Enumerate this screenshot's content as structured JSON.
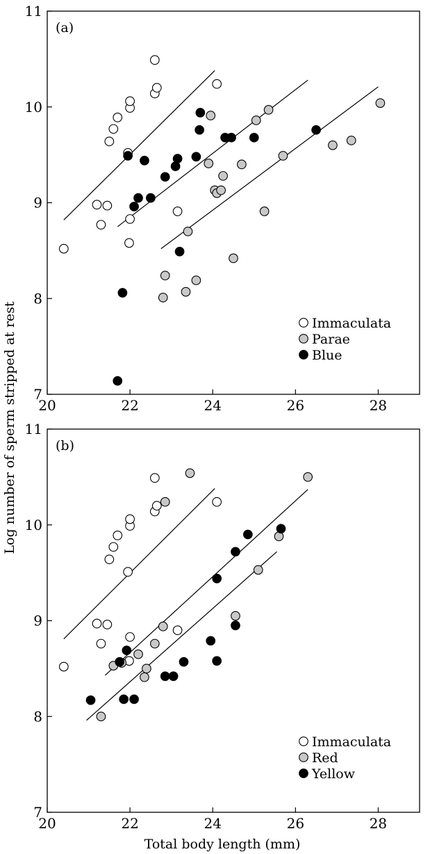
{
  "figure": {
    "ylabel": "Log number of sperm stripped at rest",
    "xlabel": "Total body length (mm)"
  },
  "chart_data": [
    {
      "type": "scatter",
      "panel_label": "(a)",
      "xlim": [
        20,
        29
      ],
      "ylim": [
        7,
        11
      ],
      "xticks": [
        20,
        22,
        24,
        26,
        28
      ],
      "yticks": [
        7,
        8,
        9,
        10,
        11
      ],
      "grid": false,
      "legend_position": "bottom-right",
      "series": [
        {
          "name": "Immaculata",
          "fill": "#ffffff",
          "points": [
            [
              20.4,
              8.52
            ],
            [
              21.2,
              8.98
            ],
            [
              21.3,
              8.77
            ],
            [
              21.45,
              8.97
            ],
            [
              21.5,
              9.64
            ],
            [
              21.6,
              9.77
            ],
            [
              21.7,
              9.89
            ],
            [
              21.95,
              9.52
            ],
            [
              22.0,
              9.99
            ],
            [
              22.0,
              10.06
            ],
            [
              22.0,
              8.83
            ],
            [
              21.98,
              8.58
            ],
            [
              22.6,
              10.14
            ],
            [
              22.6,
              10.49
            ],
            [
              22.65,
              10.2
            ],
            [
              23.15,
              8.91
            ],
            [
              24.1,
              10.24
            ]
          ],
          "fit": [
            [
              20.4,
              8.82
            ],
            [
              24.05,
              10.38
            ]
          ]
        },
        {
          "name": "Parae",
          "fill": "#c8c8c8",
          "points": [
            [
              22.8,
              8.01
            ],
            [
              22.85,
              8.24
            ],
            [
              23.35,
              8.07
            ],
            [
              23.4,
              8.7
            ],
            [
              23.6,
              8.19
            ],
            [
              23.9,
              9.41
            ],
            [
              23.95,
              9.91
            ],
            [
              24.05,
              9.13
            ],
            [
              24.1,
              9.1
            ],
            [
              24.2,
              9.13
            ],
            [
              24.25,
              9.28
            ],
            [
              24.5,
              8.42
            ],
            [
              24.7,
              9.4
            ],
            [
              25.05,
              9.86
            ],
            [
              25.25,
              8.91
            ],
            [
              25.35,
              9.97
            ],
            [
              25.7,
              9.49
            ],
            [
              26.9,
              9.6
            ],
            [
              27.35,
              9.65
            ],
            [
              28.05,
              10.04
            ]
          ],
          "fit": [
            [
              22.75,
              8.52
            ],
            [
              28.0,
              10.21
            ]
          ]
        },
        {
          "name": "Blue",
          "fill": "#000000",
          "points": [
            [
              21.7,
              7.14
            ],
            [
              21.82,
              8.06
            ],
            [
              21.95,
              9.49
            ],
            [
              22.1,
              8.96
            ],
            [
              22.2,
              9.05
            ],
            [
              22.35,
              9.44
            ],
            [
              22.5,
              9.05
            ],
            [
              22.85,
              9.27
            ],
            [
              23.1,
              9.38
            ],
            [
              23.15,
              9.46
            ],
            [
              23.2,
              8.49
            ],
            [
              23.6,
              9.48
            ],
            [
              23.68,
              9.76
            ],
            [
              23.7,
              9.94
            ],
            [
              24.3,
              9.68
            ],
            [
              24.45,
              9.68
            ],
            [
              25.0,
              9.68
            ],
            [
              26.5,
              9.76
            ]
          ],
          "fit": [
            [
              21.7,
              8.75
            ],
            [
              26.3,
              10.28
            ]
          ]
        }
      ]
    },
    {
      "type": "scatter",
      "panel_label": "(b)",
      "xlim": [
        20,
        29
      ],
      "ylim": [
        7,
        11
      ],
      "xticks": [
        20,
        22,
        24,
        26,
        28
      ],
      "yticks": [
        7,
        8,
        9,
        10,
        11
      ],
      "grid": false,
      "legend_position": "bottom-right",
      "series": [
        {
          "name": "Immaculata",
          "fill": "#ffffff",
          "points": [
            [
              20.4,
              8.52
            ],
            [
              21.2,
              8.97
            ],
            [
              21.3,
              8.76
            ],
            [
              21.45,
              8.96
            ],
            [
              21.5,
              9.64
            ],
            [
              21.6,
              9.77
            ],
            [
              21.7,
              9.89
            ],
            [
              21.95,
              9.51
            ],
            [
              22.0,
              9.99
            ],
            [
              22.0,
              10.06
            ],
            [
              22.0,
              8.83
            ],
            [
              21.98,
              8.58
            ],
            [
              22.6,
              10.14
            ],
            [
              22.6,
              10.49
            ],
            [
              22.65,
              10.2
            ],
            [
              23.15,
              8.9
            ],
            [
              24.1,
              10.24
            ]
          ],
          "fit": [
            [
              20.4,
              8.81
            ],
            [
              24.05,
              10.38
            ]
          ]
        },
        {
          "name": "Red",
          "fill": "#c8c8c8",
          "points": [
            [
              21.3,
              8.0
            ],
            [
              21.6,
              8.53
            ],
            [
              21.8,
              8.56
            ],
            [
              22.2,
              8.65
            ],
            [
              22.35,
              8.41
            ],
            [
              22.4,
              8.5
            ],
            [
              22.6,
              8.76
            ],
            [
              22.8,
              8.94
            ],
            [
              22.85,
              10.24
            ],
            [
              23.45,
              10.54
            ],
            [
              24.55,
              9.05
            ],
            [
              25.1,
              9.53
            ],
            [
              25.6,
              9.88
            ],
            [
              26.3,
              10.5
            ]
          ],
          "fit": [
            [
              21.4,
              8.43
            ],
            [
              26.3,
              10.37
            ]
          ]
        },
        {
          "name": "Yellow",
          "fill": "#000000",
          "points": [
            [
              21.05,
              8.17
            ],
            [
              21.75,
              8.57
            ],
            [
              21.85,
              8.18
            ],
            [
              21.92,
              8.69
            ],
            [
              22.1,
              8.18
            ],
            [
              22.85,
              8.42
            ],
            [
              23.05,
              8.42
            ],
            [
              23.3,
              8.57
            ],
            [
              23.95,
              8.79
            ],
            [
              24.1,
              8.58
            ],
            [
              24.1,
              9.44
            ],
            [
              24.55,
              9.72
            ],
            [
              24.55,
              8.95
            ],
            [
              24.85,
              9.9
            ],
            [
              25.65,
              9.96
            ]
          ],
          "fit": [
            [
              20.95,
              7.96
            ],
            [
              25.55,
              9.72
            ]
          ]
        }
      ]
    }
  ]
}
